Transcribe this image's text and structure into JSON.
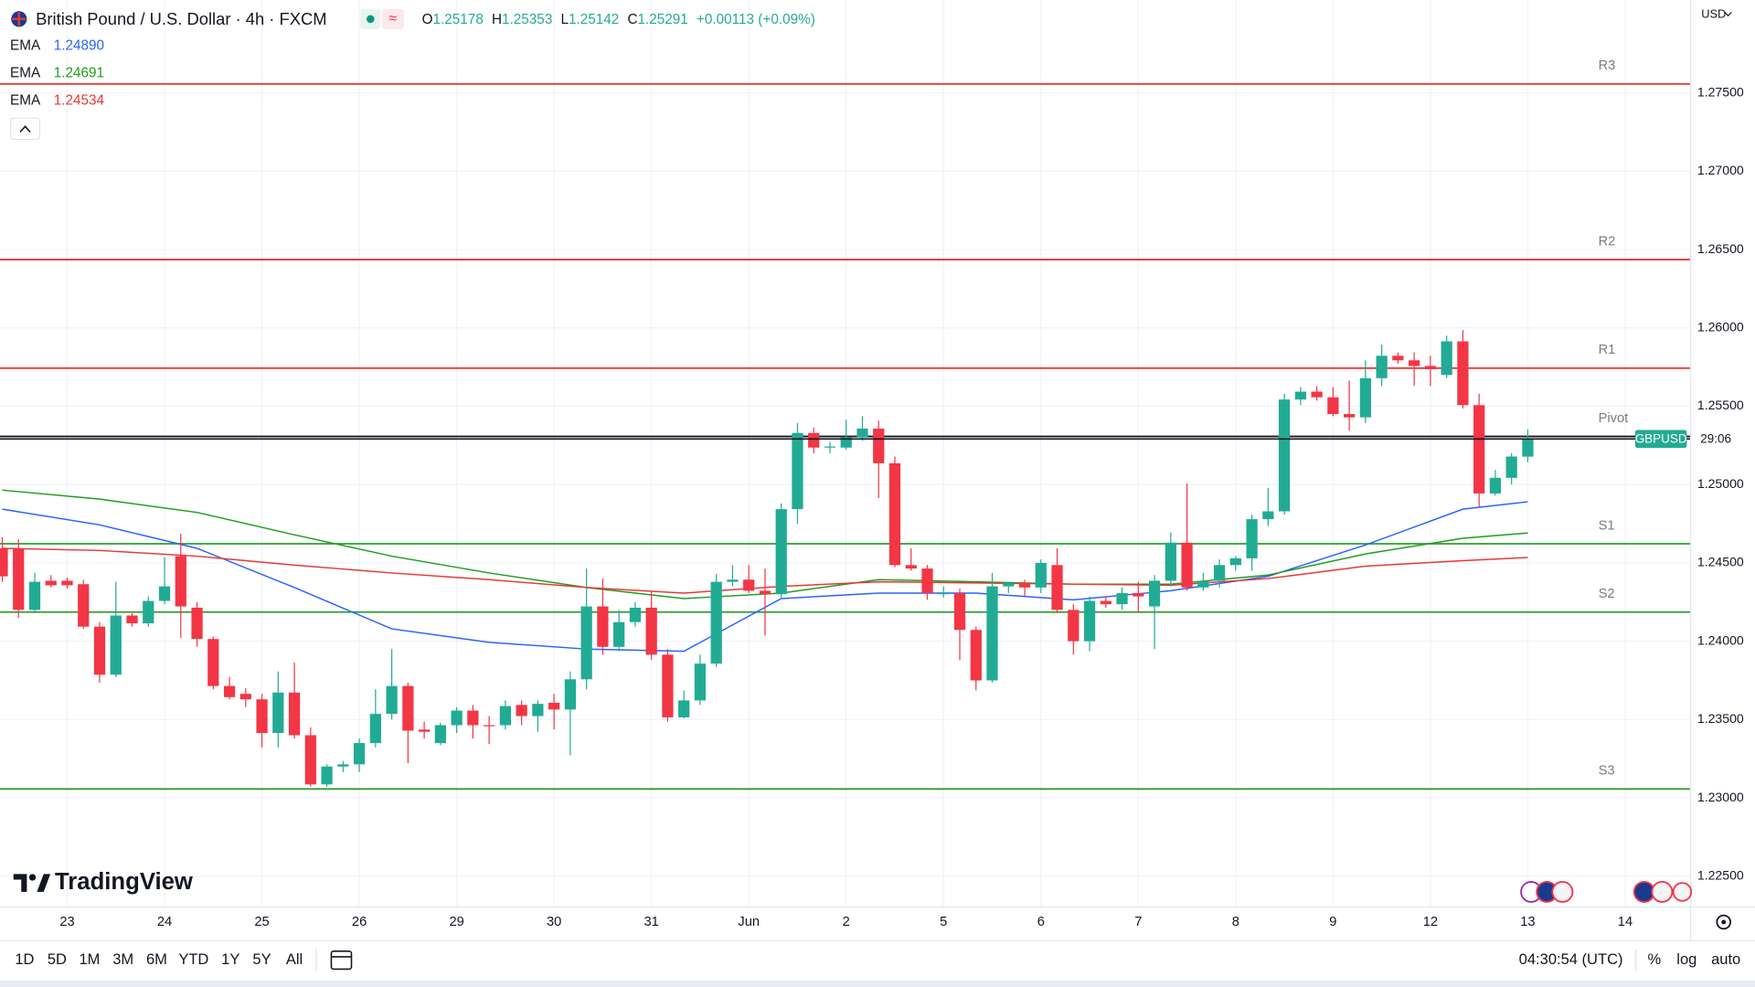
{
  "chart_data": {
    "type": "candlestick",
    "title": "British Pound / U.S. Dollar · 4h · FXCM",
    "ohlc_labels": [
      "O",
      "H",
      "L",
      "C"
    ],
    "change": "+0.00113 (+0.09%)",
    "currency": "USD",
    "symbol": "GBPUSD",
    "countdown": "29:06",
    "brand": "TradingView",
    "up_color": "#22ab94",
    "down_color": "#f23645",
    "grid": true,
    "xlim": [
      -0.14,
      104.0
    ],
    "ylim": [
      1.22307,
      1.28093
    ],
    "yticks": [
      {
        "value": 1.225,
        "label": "1.22500"
      },
      {
        "value": 1.23,
        "label": "1.23000"
      },
      {
        "value": 1.235,
        "label": "1.23500"
      },
      {
        "value": 1.24,
        "label": "1.24000"
      },
      {
        "value": 1.245,
        "label": "1.24500"
      },
      {
        "value": 1.25,
        "label": "1.25000"
      },
      {
        "value": 1.255,
        "label": "1.25500"
      },
      {
        "value": 1.26,
        "label": "1.26000"
      },
      {
        "value": 1.265,
        "label": "1.26500"
      },
      {
        "value": 1.27,
        "label": "1.27000"
      },
      {
        "value": 1.275,
        "label": "1.27500"
      }
    ],
    "xticks": [
      {
        "value": 4,
        "label": "23"
      },
      {
        "value": 10,
        "label": "24"
      },
      {
        "value": 16,
        "label": "25"
      },
      {
        "value": 22,
        "label": "26"
      },
      {
        "value": 28,
        "label": "29"
      },
      {
        "value": 34,
        "label": "30"
      },
      {
        "value": 40,
        "label": "31"
      },
      {
        "value": 46,
        "label": "Jun"
      },
      {
        "value": 52,
        "label": "2"
      },
      {
        "value": 58,
        "label": "5"
      },
      {
        "value": 64,
        "label": "6"
      },
      {
        "value": 70,
        "label": "7"
      },
      {
        "value": 76,
        "label": "8"
      },
      {
        "value": 82,
        "label": "9"
      },
      {
        "value": 88,
        "label": "12"
      },
      {
        "value": 94,
        "label": "13"
      },
      {
        "value": 100,
        "label": "14"
      }
    ],
    "open": [
      1.24593,
      1.24593,
      1.242,
      1.24386,
      1.24386,
      1.24364,
      1.24093,
      1.23786,
      1.24164,
      1.24114,
      1.24257,
      1.24543,
      1.24214,
      1.24014,
      1.23714,
      1.23664,
      1.23629,
      1.23414,
      1.23672,
      1.234,
      1.23086,
      1.232,
      1.23214,
      1.2335,
      1.23536,
      1.23714,
      1.23436,
      1.2335,
      1.23464,
      1.23557,
      1.23464,
      1.23464,
      1.23593,
      1.23522,
      1.23607,
      1.23564,
      1.23757,
      1.24222,
      1.23964,
      1.24122,
      1.24214,
      1.23914,
      1.23514,
      1.23622,
      1.23857,
      1.24379,
      1.24393,
      1.24322,
      1.243,
      1.24843,
      1.25329,
      1.25236,
      1.25236,
      1.253,
      1.25357,
      1.25136,
      1.24486,
      1.24464,
      1.24307,
      1.24307,
      1.24072,
      1.2375,
      1.2435,
      1.24372,
      1.24343,
      1.24486,
      1.242,
      1.24,
      1.24257,
      1.24236,
      1.24307,
      1.24222,
      1.24386,
      1.24629,
      1.24343,
      1.24386,
      1.24486,
      1.24529,
      1.24779,
      1.24829,
      1.25543,
      1.25593,
      1.25557,
      1.2545,
      1.25429,
      1.25679,
      1.25822,
      1.25793,
      1.25757,
      1.257,
      1.25914,
      1.25507,
      1.24943,
      1.25043,
      1.25178
    ],
    "high": [
      1.24664,
      1.2465,
      1.24436,
      1.24422,
      1.24407,
      1.24393,
      1.24122,
      1.24379,
      1.24179,
      1.24286,
      1.24536,
      1.24686,
      1.2425,
      1.24029,
      1.23772,
      1.237,
      1.23664,
      1.23807,
      1.23864,
      1.2345,
      1.23214,
      1.23236,
      1.23379,
      1.23693,
      1.2395,
      1.23736,
      1.23486,
      1.23479,
      1.23579,
      1.23593,
      1.23522,
      1.23622,
      1.23622,
      1.23622,
      1.23664,
      1.23807,
      1.24464,
      1.244,
      1.242,
      1.2425,
      1.24322,
      1.2395,
      1.23686,
      1.23914,
      1.24429,
      1.24486,
      1.24486,
      1.24464,
      1.24879,
      1.25393,
      1.25364,
      1.25272,
      1.25414,
      1.25436,
      1.25407,
      1.25179,
      1.24593,
      1.24486,
      1.2435,
      1.24336,
      1.24093,
      1.24436,
      1.24379,
      1.24393,
      1.24522,
      1.24593,
      1.24236,
      1.24286,
      1.24286,
      1.24343,
      1.24379,
      1.24422,
      1.24693,
      1.25007,
      1.24436,
      1.24522,
      1.24543,
      1.24807,
      1.24979,
      1.25579,
      1.25622,
      1.25629,
      1.25622,
      1.25664,
      1.25793,
      1.25893,
      1.25843,
      1.25843,
      1.25822,
      1.2595,
      1.25986,
      1.25579,
      1.25093,
      1.252,
      1.25353
    ],
    "low": [
      1.24379,
      1.2415,
      1.24179,
      1.24343,
      1.24336,
      1.24079,
      1.23736,
      1.23772,
      1.24093,
      1.24093,
      1.24236,
      1.24022,
      1.23964,
      1.23693,
      1.23629,
      1.23579,
      1.23322,
      1.23322,
      1.23379,
      1.23072,
      1.23072,
      1.23164,
      1.23164,
      1.23322,
      1.235,
      1.23222,
      1.23379,
      1.23336,
      1.23414,
      1.23379,
      1.23343,
      1.23436,
      1.23464,
      1.23422,
      1.23436,
      1.23272,
      1.23693,
      1.23914,
      1.23936,
      1.24093,
      1.23879,
      1.23486,
      1.23507,
      1.23593,
      1.23836,
      1.2435,
      1.24307,
      1.24036,
      1.24279,
      1.2475,
      1.252,
      1.252,
      1.25222,
      1.25279,
      1.24914,
      1.24472,
      1.2445,
      1.24264,
      1.24279,
      1.23879,
      1.23686,
      1.23736,
      1.24307,
      1.24286,
      1.24307,
      1.24179,
      1.23914,
      1.23936,
      1.24214,
      1.242,
      1.24186,
      1.2395,
      1.2435,
      1.24322,
      1.24322,
      1.24343,
      1.2445,
      1.2445,
      1.24736,
      1.24807,
      1.25507,
      1.25536,
      1.25436,
      1.25343,
      1.25393,
      1.25629,
      1.25772,
      1.25629,
      1.25629,
      1.25679,
      1.25486,
      1.24857,
      1.24929,
      1.25,
      1.25142
    ],
    "close": [
      1.24414,
      1.242,
      1.24379,
      1.24357,
      1.24357,
      1.24093,
      1.23786,
      1.24164,
      1.24114,
      1.24257,
      1.2435,
      1.24222,
      1.24014,
      1.23714,
      1.23643,
      1.23629,
      1.23414,
      1.23672,
      1.234,
      1.23086,
      1.232,
      1.23214,
      1.2335,
      1.23536,
      1.23714,
      1.23429,
      1.23422,
      1.23464,
      1.23557,
      1.23464,
      1.23457,
      1.23586,
      1.23522,
      1.236,
      1.23564,
      1.23757,
      1.24222,
      1.23964,
      1.24122,
      1.24214,
      1.23914,
      1.23514,
      1.23622,
      1.23857,
      1.24379,
      1.24393,
      1.24322,
      1.243,
      1.24843,
      1.25329,
      1.25236,
      1.25243,
      1.253,
      1.25357,
      1.25136,
      1.24486,
      1.24464,
      1.24307,
      1.24307,
      1.24072,
      1.2375,
      1.2435,
      1.24372,
      1.24343,
      1.245,
      1.242,
      1.24,
      1.24257,
      1.24236,
      1.24307,
      1.24286,
      1.24386,
      1.24629,
      1.24343,
      1.24386,
      1.24486,
      1.24529,
      1.24779,
      1.24829,
      1.25543,
      1.25593,
      1.25557,
      1.2545,
      1.25429,
      1.25679,
      1.25822,
      1.25793,
      1.25757,
      1.25736,
      1.25914,
      1.25507,
      1.24943,
      1.25043,
      1.25179,
      1.25291
    ],
    "ema_x": [
      0,
      6,
      12,
      18,
      24,
      30,
      36,
      42,
      48,
      54,
      60,
      66,
      72,
      78,
      84,
      90,
      94
    ],
    "ema": [
      {
        "name": "EMA",
        "color": "#2962ff",
        "value_label": "1.24890",
        "values": [
          1.24843,
          1.24743,
          1.24593,
          1.24343,
          1.24079,
          1.23993,
          1.2395,
          1.23936,
          1.24272,
          1.24307,
          1.24307,
          1.24264,
          1.24322,
          1.24414,
          1.24614,
          1.24843,
          1.2489
        ]
      },
      {
        "name": "EMA",
        "color": "#1f9d1f",
        "value_label": "1.24691",
        "values": [
          1.24964,
          1.24907,
          1.24822,
          1.24679,
          1.24543,
          1.24436,
          1.24343,
          1.24272,
          1.24307,
          1.24393,
          1.24379,
          1.24364,
          1.24364,
          1.24422,
          1.24557,
          1.24657,
          1.24691
        ]
      },
      {
        "name": "EMA",
        "color": "#e53935",
        "value_label": "1.24534",
        "values": [
          1.24593,
          1.24579,
          1.24543,
          1.24486,
          1.24436,
          1.24393,
          1.24343,
          1.24307,
          1.2435,
          1.24379,
          1.24372,
          1.24364,
          1.24357,
          1.244,
          1.24479,
          1.24514,
          1.24534
        ]
      }
    ],
    "levels": [
      {
        "label": "R3",
        "value": 1.27557,
        "color": "#e53935"
      },
      {
        "label": "R2",
        "value": 1.26436,
        "color": "#e53935"
      },
      {
        "label": "R1",
        "value": 1.25743,
        "color": "#e53935"
      },
      {
        "label": "Pivot",
        "value": 1.25307,
        "color": "#131722"
      },
      {
        "label": "S1",
        "value": 1.24622,
        "color": "#2e9e2e"
      },
      {
        "label": "S2",
        "value": 1.24186,
        "color": "#2e9e2e"
      },
      {
        "label": "S3",
        "value": 1.23057,
        "color": "#2e9e2e"
      }
    ]
  },
  "toolbar": {
    "ranges": [
      "1D",
      "5D",
      "1M",
      "3M",
      "6M",
      "YTD",
      "1Y",
      "5Y",
      "All"
    ],
    "clock": "04:30:54 (UTC)",
    "percent": "%",
    "log": "log",
    "auto": "auto"
  }
}
